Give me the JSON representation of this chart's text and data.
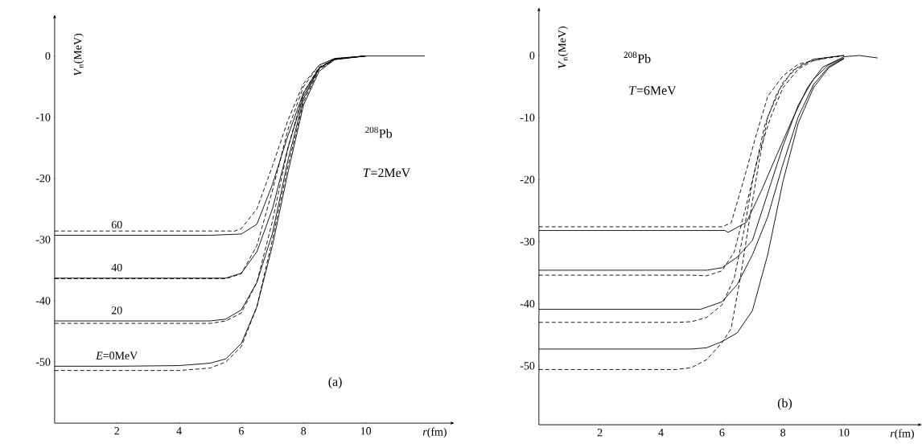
{
  "chart_data": [
    {
      "type": "line",
      "xlabel": "*r*(fm)",
      "ylabel": "*V*$_{n}$(MeV)",
      "xlim": [
        0,
        12.7
      ],
      "ylim": [
        -60,
        6
      ],
      "xticks": [
        2,
        4,
        6,
        8,
        10
      ],
      "yticks": [
        0,
        -10,
        -20,
        -30,
        -40,
        -50
      ],
      "marker": "none",
      "annotations": [
        "$^{208}$Pb",
        "*T*=2MeV",
        "(a)"
      ],
      "series": [
        {
          "name": "60",
          "color": "#000000",
          "line_style": "solid",
          "x": [
            0,
            2,
            4,
            5,
            6,
            6.5,
            7,
            7.5,
            8,
            8.5,
            9,
            10,
            11,
            11.9
          ],
          "values": [
            -29.3,
            -29.3,
            -29.3,
            -29.3,
            -29.1,
            -27.5,
            -21,
            -13,
            -6,
            -2,
            -0.5,
            0,
            0,
            0
          ]
        },
        {
          "color": "#000000",
          "line_style": "dashed",
          "x": [
            0,
            2,
            4,
            5,
            5.8,
            6,
            6.5,
            7,
            7.5,
            8,
            8.5,
            9,
            10
          ],
          "values": [
            -28.6,
            -28.6,
            -28.6,
            -28.6,
            -28.6,
            -28.2,
            -25,
            -18,
            -10.5,
            -4.5,
            -1.5,
            -0.4,
            0
          ]
        },
        {
          "name": "40",
          "color": "#000000",
          "line_style": "solid",
          "x": [
            0,
            2,
            4,
            5.5,
            6,
            6.5,
            7,
            7.5,
            8,
            8.5,
            9,
            10
          ],
          "values": [
            -36.3,
            -36.3,
            -36.3,
            -36.3,
            -35.5,
            -32,
            -25,
            -15,
            -6.5,
            -2,
            -0.5,
            0
          ]
        },
        {
          "color": "#000000",
          "line_style": "dashed",
          "x": [
            0,
            2,
            4,
            5.5,
            6,
            6.5,
            7,
            7.5,
            8,
            8.5,
            9,
            10
          ],
          "values": [
            -36.4,
            -36.4,
            -36.4,
            -36.4,
            -35.6,
            -31,
            -22,
            -12,
            -5,
            -1.5,
            -0.4,
            0
          ]
        },
        {
          "name": "20",
          "color": "#000000",
          "line_style": "solid",
          "x": [
            0,
            2,
            4,
            5,
            5.5,
            6,
            6.5,
            7,
            7.5,
            8,
            8.5,
            9,
            10
          ],
          "values": [
            -43.3,
            -43.3,
            -43.3,
            -43.3,
            -43,
            -41.5,
            -37,
            -29,
            -17,
            -7,
            -2,
            -0.5,
            0
          ]
        },
        {
          "color": "#000000",
          "line_style": "dashed",
          "x": [
            0,
            2,
            4,
            5,
            5.5,
            6,
            6.5,
            7,
            7.5,
            8,
            8.5,
            9,
            10
          ],
          "values": [
            -43.7,
            -43.7,
            -43.7,
            -43.7,
            -43.3,
            -42,
            -37,
            -27,
            -15,
            -6,
            -1.8,
            -0.5,
            0
          ]
        },
        {
          "name": "*E*=0MeV",
          "color": "#000000",
          "line_style": "solid",
          "x": [
            0,
            2,
            4,
            5,
            5.5,
            6,
            6.5,
            7,
            7.5,
            8,
            8.5,
            9,
            10
          ],
          "values": [
            -50.7,
            -50.7,
            -50.6,
            -50.2,
            -49.5,
            -47,
            -41,
            -31,
            -19,
            -8,
            -2.5,
            -0.6,
            0
          ]
        },
        {
          "color": "#000000",
          "line_style": "dashed",
          "x": [
            0,
            2,
            4,
            5,
            5.5,
            6,
            6.5,
            7,
            7.5,
            8,
            8.5,
            9,
            10
          ],
          "values": [
            -51.4,
            -51.4,
            -51.4,
            -51,
            -50,
            -47.5,
            -41,
            -30,
            -18,
            -7.5,
            -2.2,
            -0.6,
            0
          ]
        }
      ]
    },
    {
      "type": "line",
      "xlabel": "*r*(fm)",
      "ylabel": "*V*$_{n}$(MeV)",
      "xlim": [
        0,
        12.4
      ],
      "ylim": [
        -59.5,
        7
      ],
      "xticks": [
        2,
        4,
        6,
        8,
        10
      ],
      "yticks": [
        0,
        -10,
        -20,
        -30,
        -40,
        -50
      ],
      "marker": "none",
      "annotations": [
        "$^{208}$Pb",
        "*T*=6MeV",
        "(b)"
      ],
      "series": [
        {
          "color": "#000000",
          "line_style": "solid",
          "x": [
            0,
            2,
            4,
            6.1,
            6.2,
            6.8,
            7.3,
            7.8,
            8.3,
            8.8,
            9.3,
            10,
            10.5,
            11.1
          ],
          "values": [
            -28.2,
            -28.2,
            -28.2,
            -28.2,
            -28.5,
            -26.9,
            -21.7,
            -16,
            -10.4,
            -5.2,
            -1.9,
            -0.2,
            0,
            -0.4
          ]
        },
        {
          "color": "#000000",
          "line_style": "dashed",
          "x": [
            0,
            2,
            4,
            6,
            6.3,
            6.7,
            7.1,
            7.5,
            8,
            8.5,
            9.5,
            10
          ],
          "values": [
            -27.6,
            -27.6,
            -27.6,
            -27.6,
            -27,
            -20.3,
            -13.2,
            -6.6,
            -3.3,
            -1.4,
            -0.3,
            0
          ]
        },
        {
          "color": "#000000",
          "line_style": "solid",
          "x": [
            0,
            2,
            4,
            5.5,
            6,
            6.5,
            7,
            7.5,
            8,
            8.5,
            9,
            9.5,
            10
          ],
          "values": [
            -34.6,
            -34.6,
            -34.6,
            -34.6,
            -34.2,
            -32.5,
            -29.8,
            -22.2,
            -14.6,
            -8,
            -3.8,
            -1.5,
            -0.4
          ]
        },
        {
          "color": "#000000",
          "line_style": "dashed",
          "x": [
            0,
            2,
            4,
            5,
            5.5,
            6,
            6.4,
            6.8,
            7.2,
            7.6,
            8,
            8.5,
            9,
            10
          ],
          "values": [
            -35.4,
            -35.4,
            -35.4,
            -35.4,
            -35.5,
            -34.7,
            -31.7,
            -24.1,
            -16,
            -9.9,
            -5.2,
            -2.2,
            -0.8,
            0
          ]
        },
        {
          "color": "#000000",
          "line_style": "solid",
          "x": [
            0,
            2,
            4,
            5.3,
            6,
            6.5,
            7,
            7.5,
            8,
            8.5,
            9,
            9.5,
            10
          ],
          "values": [
            -40.9,
            -40.9,
            -40.9,
            -40.9,
            -39.7,
            -36.9,
            -32.1,
            -26,
            -17.5,
            -9.9,
            -4.7,
            -1.8,
            -0.5
          ]
        },
        {
          "color": "#000000",
          "line_style": "dashed",
          "x": [
            0,
            2,
            4,
            4.5,
            5,
            5.5,
            6,
            6.4,
            6.7,
            7,
            7.4,
            7.8,
            8.3,
            9,
            10
          ],
          "values": [
            -43,
            -43,
            -43,
            -43,
            -42.9,
            -42.2,
            -40.2,
            -35.9,
            -28.8,
            -20.3,
            -11.3,
            -6.1,
            -2.5,
            -0.6,
            0
          ]
        },
        {
          "color": "#000000",
          "line_style": "solid",
          "x": [
            0,
            2,
            4,
            5,
            5.5,
            6,
            6.5,
            7,
            7.5,
            8,
            8.5,
            9,
            9.5,
            10
          ],
          "values": [
            -47.3,
            -47.3,
            -47.3,
            -47.3,
            -47.1,
            -46.1,
            -44.7,
            -41.1,
            -32.1,
            -20.3,
            -10.9,
            -5.2,
            -2,
            -0.5
          ]
        },
        {
          "color": "#000000",
          "line_style": "dashed",
          "x": [
            0,
            2,
            4,
            4.5,
            5,
            5.5,
            6,
            6.3,
            6.6,
            6.9,
            7.2,
            7.5,
            8,
            8.5,
            9,
            10
          ],
          "values": [
            -50.6,
            -50.6,
            -50.6,
            -50.6,
            -50.3,
            -49,
            -46.3,
            -44,
            -35.9,
            -26.5,
            -17.5,
            -9.9,
            -4.3,
            -1.8,
            -0.6,
            0
          ]
        }
      ]
    }
  ]
}
